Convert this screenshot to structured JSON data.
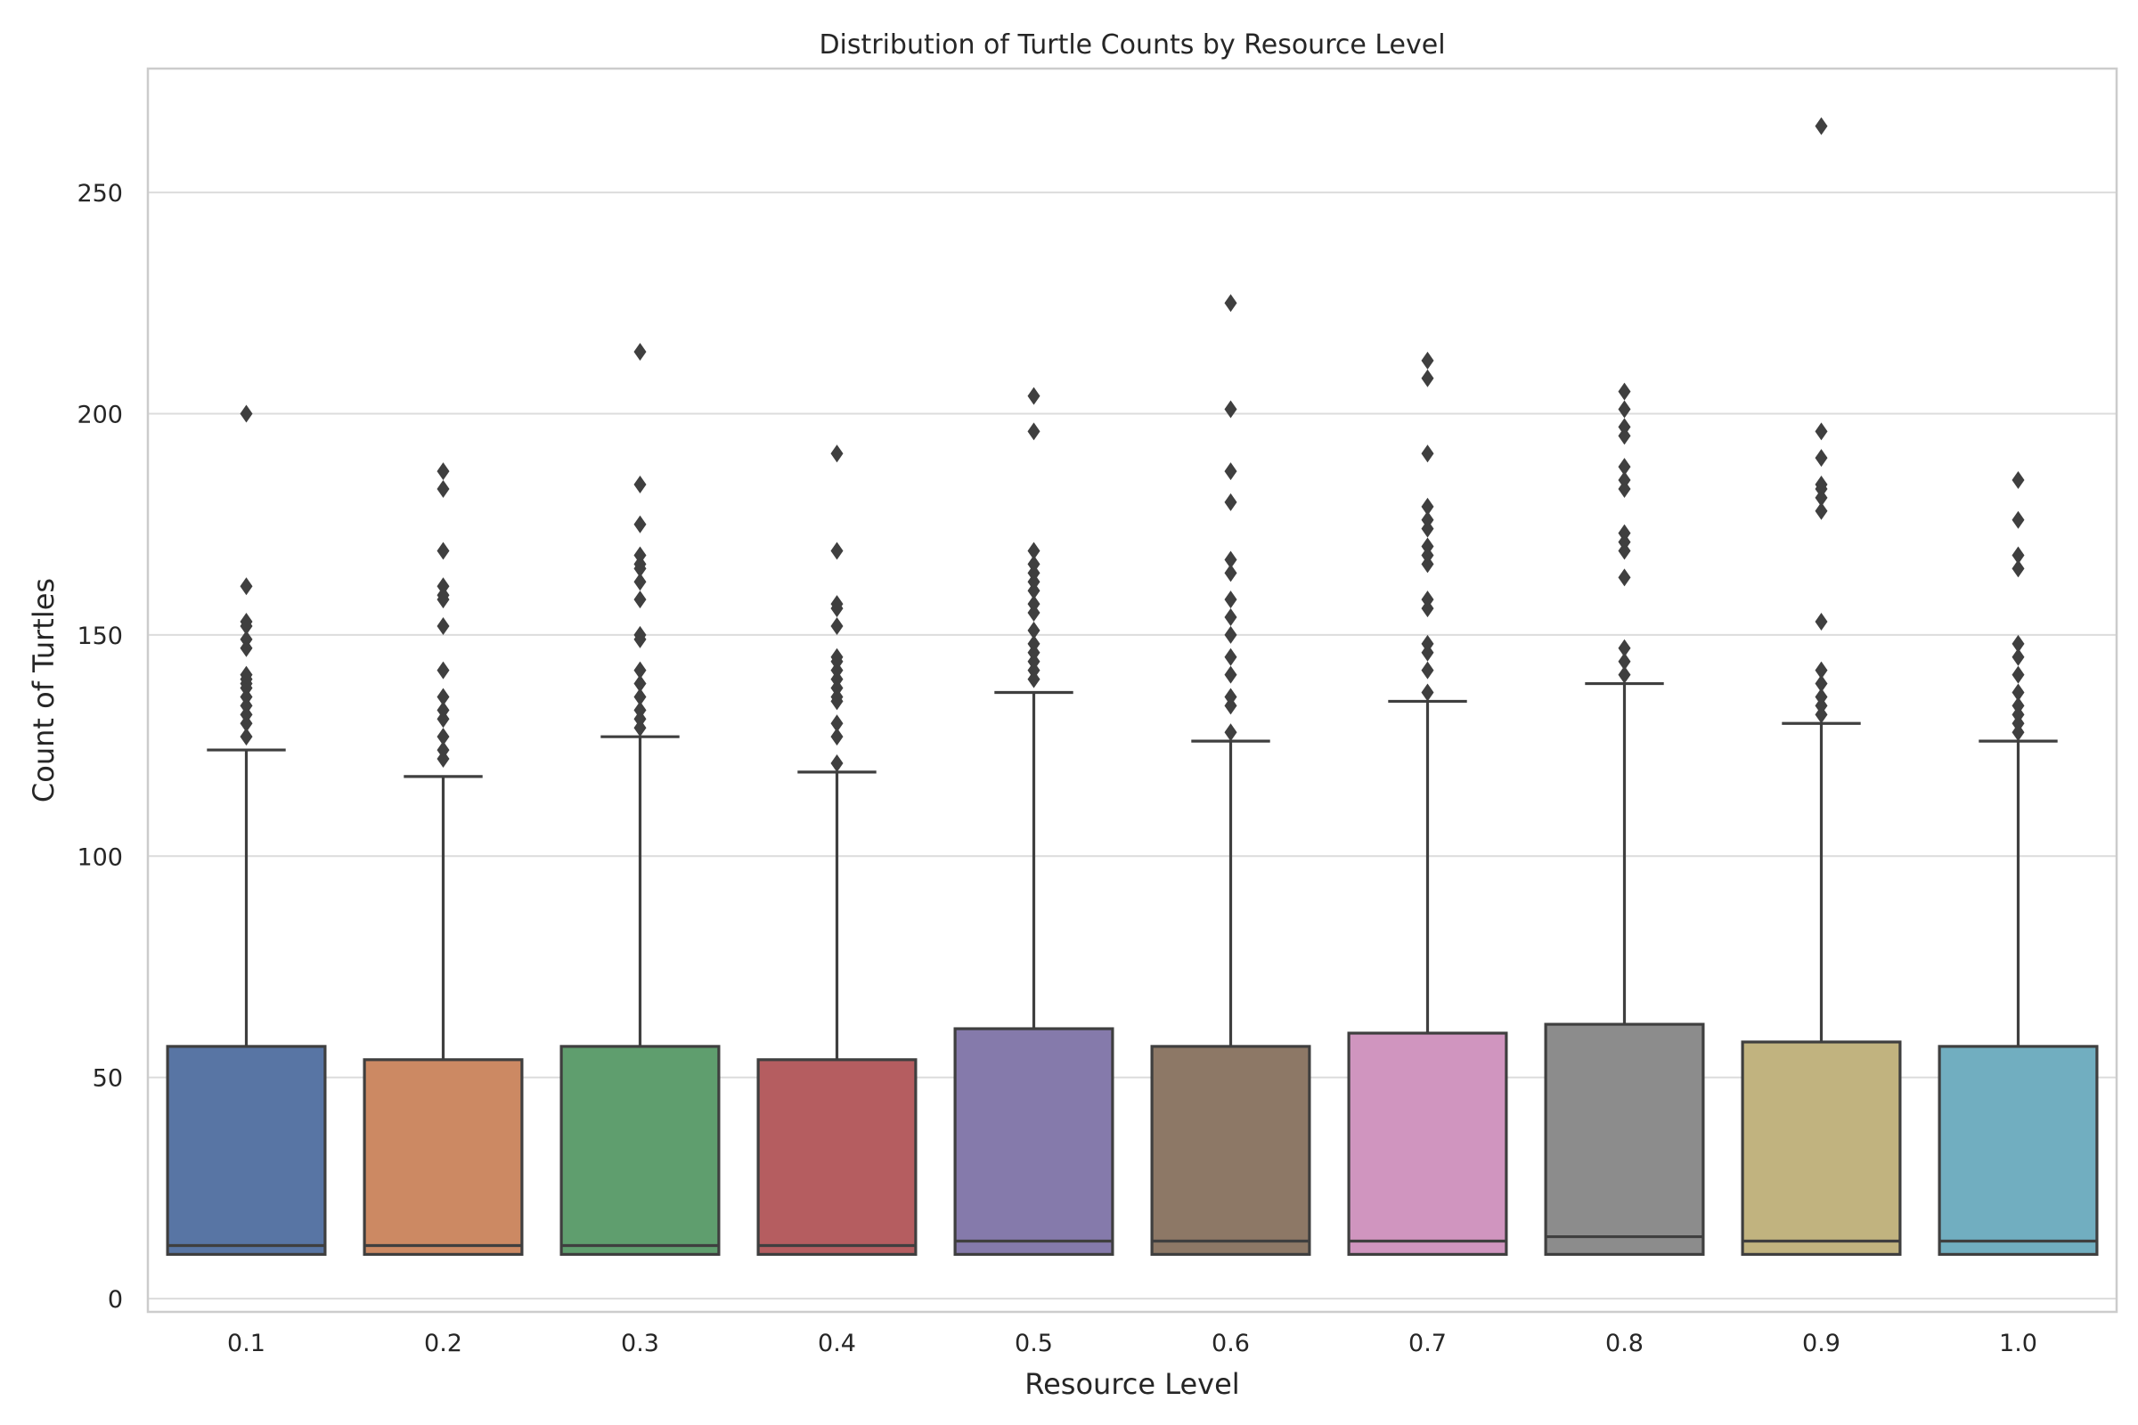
{
  "chart_data": {
    "type": "boxplot",
    "title": "Distribution of Turtle Counts by Resource Level",
    "xlabel": "Resource Level",
    "ylabel": "Count of Turtles",
    "ylim": [
      -3,
      278
    ],
    "yticks": [
      0,
      50,
      100,
      150,
      200,
      250
    ],
    "grid": true,
    "categories": [
      "0.1",
      "0.2",
      "0.3",
      "0.4",
      "0.5",
      "0.6",
      "0.7",
      "0.8",
      "0.9",
      "1.0"
    ],
    "boxes": [
      {
        "category": "0.1",
        "color": "#5875a4",
        "min": 10,
        "q1": 10,
        "median": 12,
        "q3": 57,
        "max": 124,
        "outliers": [
          127,
          130,
          132,
          134,
          136,
          138,
          139,
          140,
          141,
          147,
          149,
          152,
          153,
          161,
          200
        ]
      },
      {
        "category": "0.2",
        "color": "#cc8963",
        "min": 10,
        "q1": 10,
        "median": 12,
        "q3": 54,
        "max": 118,
        "outliers": [
          122,
          124,
          127,
          131,
          133,
          136,
          142,
          152,
          158,
          159,
          161,
          169,
          183,
          187
        ]
      },
      {
        "category": "0.3",
        "color": "#5f9e6e",
        "min": 10,
        "q1": 10,
        "median": 12,
        "q3": 57,
        "max": 127,
        "outliers": [
          129,
          131,
          133,
          136,
          139,
          142,
          149,
          150,
          158,
          162,
          165,
          166,
          168,
          175,
          184,
          214
        ]
      },
      {
        "category": "0.4",
        "color": "#b55d60",
        "min": 10,
        "q1": 10,
        "median": 12,
        "q3": 54,
        "max": 119,
        "outliers": [
          121,
          127,
          130,
          135,
          136,
          138,
          140,
          142,
          144,
          145,
          152,
          156,
          157,
          169,
          191
        ]
      },
      {
        "category": "0.5",
        "color": "#857aab",
        "min": 10,
        "q1": 10,
        "median": 13,
        "q3": 61,
        "max": 137,
        "outliers": [
          140,
          142,
          144,
          146,
          148,
          151,
          155,
          157,
          160,
          162,
          164,
          166,
          169,
          196,
          204
        ]
      },
      {
        "category": "0.6",
        "color": "#8d7866",
        "min": 10,
        "q1": 10,
        "median": 13,
        "q3": 57,
        "max": 126,
        "outliers": [
          128,
          134,
          136,
          141,
          145,
          150,
          154,
          158,
          164,
          167,
          180,
          187,
          201,
          225
        ]
      },
      {
        "category": "0.7",
        "color": "#d095bf",
        "min": 10,
        "q1": 10,
        "median": 13,
        "q3": 60,
        "max": 135,
        "outliers": [
          137,
          142,
          146,
          148,
          156,
          158,
          166,
          168,
          170,
          174,
          176,
          179,
          191,
          208,
          212
        ]
      },
      {
        "category": "0.8",
        "color": "#8c8c8c",
        "min": 10,
        "q1": 10,
        "median": 14,
        "q3": 62,
        "max": 139,
        "outliers": [
          141,
          144,
          147,
          163,
          169,
          171,
          173,
          183,
          185,
          188,
          195,
          197,
          201,
          205
        ]
      },
      {
        "category": "0.9",
        "color": "#c1b37f",
        "min": 10,
        "q1": 10,
        "median": 13,
        "q3": 58,
        "max": 130,
        "outliers": [
          132,
          134,
          136,
          139,
          142,
          153,
          178,
          181,
          183,
          184,
          190,
          196,
          265
        ]
      },
      {
        "category": "1.0",
        "color": "#71aec0",
        "min": 10,
        "q1": 10,
        "median": 13,
        "q3": 57,
        "max": 126,
        "outliers": [
          128,
          130,
          132,
          134,
          137,
          141,
          145,
          148,
          165,
          168,
          176,
          185
        ]
      }
    ]
  }
}
